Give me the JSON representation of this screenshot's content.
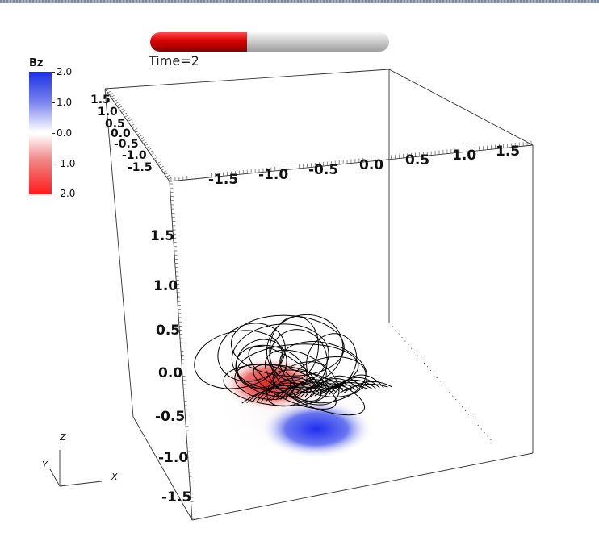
{
  "time": {
    "label": "Time=2",
    "progress": 0.405
  },
  "legend": {
    "title": "Bz",
    "ticks": [
      "2.0",
      "1.0",
      "0.0",
      "-1.0",
      "-2.0"
    ],
    "range": [
      -2.0,
      2.0
    ],
    "colors": {
      "max": "#1b2fe6",
      "mid": "#ffffff",
      "min": "#ff1a1a"
    }
  },
  "axes": {
    "x_ticks": [
      "-1.5",
      "-1.0",
      "-0.5",
      "0.0",
      "0.5",
      "1.0",
      "1.5"
    ],
    "y_ticks": [
      "1.5",
      "1.0",
      "0.5",
      "0.0",
      "-0.5",
      "-1.0",
      "-1.5"
    ],
    "z_ticks": [
      "1.5",
      "1.0",
      "0.5",
      "0.0",
      "-0.5",
      "-1.0",
      "-1.5"
    ]
  },
  "orientation": {
    "x": "X",
    "y": "Y",
    "z": "Z"
  }
}
